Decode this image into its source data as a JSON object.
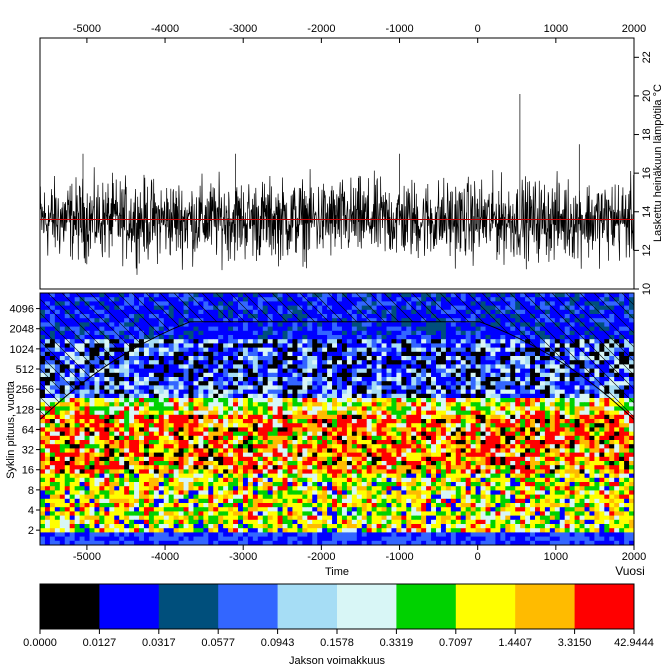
{
  "chart_data": [
    {
      "type": "line",
      "title": "",
      "ylabel": "Laskettu heinäkuun lämpötila  °C",
      "x_ticks": [
        -5000,
        -4000,
        -3000,
        -2000,
        -1000,
        0,
        1000,
        2000
      ],
      "y_ticks": [
        10,
        12,
        14,
        16,
        18,
        20,
        22
      ],
      "xlim": [
        -5600,
        2000
      ],
      "ylim": [
        10,
        23
      ],
      "series_color": "#000000",
      "mean_line": {
        "value": 13.6,
        "color": "#c00000"
      },
      "typical_range": [
        11.0,
        16.5
      ],
      "notable_peaks": [
        {
          "x": 540,
          "y": 20.1
        },
        {
          "x": -5050,
          "y": 17.0
        },
        {
          "x": -3100,
          "y": 17.0
        },
        {
          "x": -1000,
          "y": 17.0
        },
        {
          "x": 1300,
          "y": 17.5
        }
      ]
    },
    {
      "type": "heatmap",
      "xlabel": "Time",
      "ylabel": "Syklin pituus, vuotta",
      "x_ticks": [
        -5000,
        -4000,
        -3000,
        -2000,
        -1000,
        0,
        1000,
        2000
      ],
      "y_ticks": [
        2,
        4,
        8,
        16,
        32,
        64,
        128,
        256,
        512,
        1024,
        2048,
        4096
      ],
      "ylim": [
        1.2,
        7000
      ],
      "xlim": [
        -5600,
        2000
      ],
      "year_label": "Vuosi",
      "colorbar": {
        "title": "Jakson voimakkuus",
        "ticks": [
          "0.0000",
          "0.0127",
          "0.0317",
          "0.0577",
          "0.0943",
          "0.1578",
          "0.3319",
          "0.7097",
          "1.4407",
          "3.3150",
          "42.9444"
        ],
        "colors": [
          "#000000",
          "#0000ff",
          "#004f7c",
          "#3366ff",
          "#a6ddf5",
          "#d8f6f6",
          "#00d200",
          "#ffff00",
          "#ffbb00",
          "#ff0000"
        ]
      },
      "bands": [
        {
          "period_range": [
            2,
            8
          ],
          "dominant": "yellow-green-orange with blue streaks"
        },
        {
          "period_range": [
            16,
            128
          ],
          "dominant": "red and orange patches"
        },
        {
          "period_range": [
            256,
            1024
          ],
          "dominant": "blue and cyan"
        },
        {
          "period_range": [
            2048,
            4096
          ],
          "dominant": "blue"
        }
      ]
    }
  ]
}
